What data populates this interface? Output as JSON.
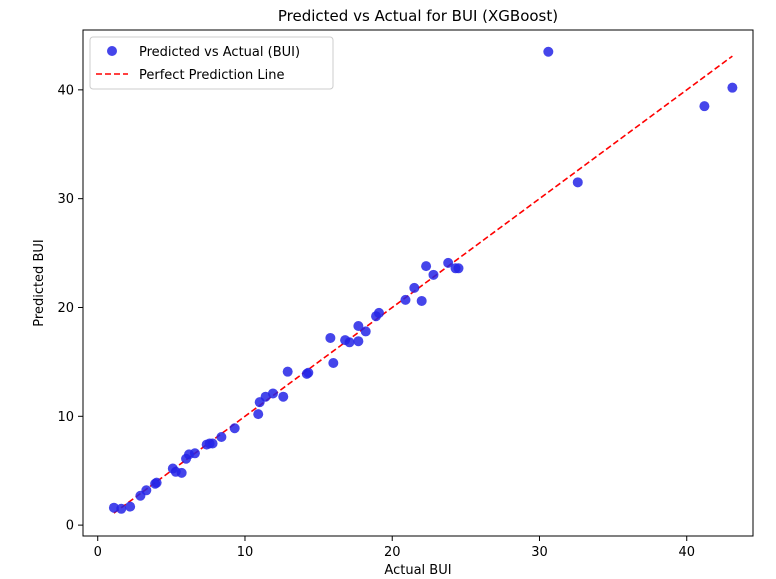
{
  "chart_data": {
    "type": "scatter",
    "title": "Predicted vs Actual for BUI (XGBoost)",
    "xlabel": "Actual BUI",
    "ylabel": "Predicted BUI",
    "xlim": [
      -1.0,
      44.5
    ],
    "ylim": [
      -1.0,
      45.5
    ],
    "xticks": [
      0,
      10,
      20,
      30,
      40
    ],
    "yticks": [
      0,
      10,
      20,
      30,
      40
    ],
    "grid": false,
    "legend_position": "top-left",
    "colors": {
      "scatter": "#2424e6",
      "line": "#ff0000"
    },
    "series": [
      {
        "name": "Predicted vs Actual (BUI)",
        "kind": "scatter",
        "points": [
          [
            1.1,
            1.6
          ],
          [
            1.6,
            1.5
          ],
          [
            2.2,
            1.7
          ],
          [
            2.9,
            2.7
          ],
          [
            3.3,
            3.2
          ],
          [
            3.9,
            3.8
          ],
          [
            4.0,
            3.9
          ],
          [
            5.1,
            5.2
          ],
          [
            5.3,
            4.9
          ],
          [
            5.7,
            4.8
          ],
          [
            6.0,
            6.1
          ],
          [
            6.2,
            6.5
          ],
          [
            6.6,
            6.6
          ],
          [
            7.4,
            7.4
          ],
          [
            7.6,
            7.5
          ],
          [
            7.8,
            7.5
          ],
          [
            8.4,
            8.1
          ],
          [
            9.3,
            8.9
          ],
          [
            10.9,
            10.2
          ],
          [
            11.0,
            11.3
          ],
          [
            11.4,
            11.8
          ],
          [
            11.9,
            12.1
          ],
          [
            12.6,
            11.8
          ],
          [
            12.9,
            14.1
          ],
          [
            14.2,
            13.9
          ],
          [
            14.3,
            14.0
          ],
          [
            15.8,
            17.2
          ],
          [
            16.0,
            14.9
          ],
          [
            16.8,
            17.0
          ],
          [
            17.1,
            16.8
          ],
          [
            17.7,
            16.9
          ],
          [
            17.7,
            18.3
          ],
          [
            18.2,
            17.8
          ],
          [
            18.9,
            19.2
          ],
          [
            19.1,
            19.5
          ],
          [
            20.9,
            20.7
          ],
          [
            21.5,
            21.8
          ],
          [
            22.0,
            20.6
          ],
          [
            22.3,
            23.8
          ],
          [
            22.8,
            23.0
          ],
          [
            23.8,
            24.1
          ],
          [
            24.3,
            23.6
          ],
          [
            24.5,
            23.6
          ],
          [
            30.6,
            43.5
          ],
          [
            32.6,
            31.5
          ],
          [
            41.2,
            38.5
          ],
          [
            43.1,
            40.2
          ]
        ]
      },
      {
        "name": "Perfect Prediction Line",
        "kind": "line",
        "style": "dashed",
        "points": [
          [
            1.1,
            1.1
          ],
          [
            43.1,
            43.1
          ]
        ]
      }
    ]
  }
}
